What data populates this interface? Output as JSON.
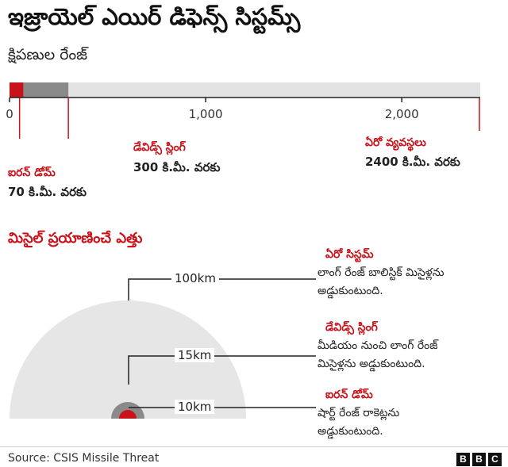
{
  "title": "ఇజ్రాయెల్ ఎయిర్ డిఫెన్స్ సిస్టమ్స్",
  "subtitle": "క్షిపణుల రేంజ్",
  "altitude_heading": "మిసైల్ ప్రయాణించే ఎత్తు",
  "source": "Source: CSIS Missile Threat",
  "brand": [
    "B",
    "B",
    "C"
  ],
  "colors": {
    "red": "#c8131a",
    "dark_gray": "#8a8a8a",
    "light_gray": "#e3e3e3",
    "text": "#222222"
  },
  "chart_data": [
    {
      "type": "bar",
      "axis": {
        "min": 0,
        "max": 2400,
        "ticks": [
          0,
          1000,
          2000
        ],
        "tick_labels": [
          "0",
          "1,000",
          "2,000"
        ]
      },
      "systems": [
        {
          "name": "ఐరన్ డోమ్",
          "range_km": 70,
          "range_label": "70 కి.మీ. వరకు",
          "color": "#c8131a"
        },
        {
          "name": "డేవిడ్స్ స్లింగ్",
          "range_km": 300,
          "range_label": "300 కి.మీ. వరకు",
          "color": "#8a8a8a"
        },
        {
          "name": "ఏరో వ్యవస్థలు",
          "range_km": 2400,
          "range_label": "2400 కి.మీ. వరకు",
          "color": "#e3e3e3"
        }
      ]
    },
    {
      "type": "area",
      "altitudes": [
        {
          "value_km": 100,
          "label": "100km",
          "system": "ఏరో సిస్టమ్",
          "desc": [
            "లాంగ్ రేంజ్ బాలిస్టిక్ మిసైళ్లను",
            "అడ్డుకుంటుంది."
          ]
        },
        {
          "value_km": 15,
          "label": "15km",
          "system": "డేవిడ్స్ స్లింగ్",
          "desc": [
            "మీడియం నుంచి లాంగ్ రేంజ్",
            "మిసైళ్లను అడ్డుకుంటుంది."
          ]
        },
        {
          "value_km": 10,
          "label": "10km",
          "system": "ఐరన్ డోమ్",
          "desc": [
            "షార్ట్ రేంజ్ రాకెట్లను",
            "అడ్డుకుంటుంది."
          ]
        }
      ]
    }
  ]
}
